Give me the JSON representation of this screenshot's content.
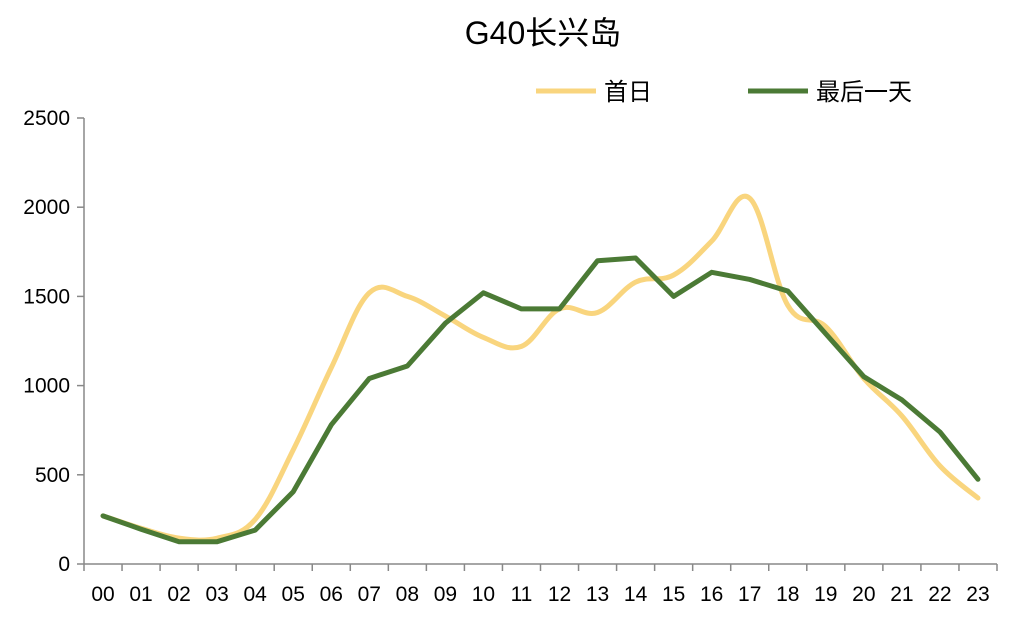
{
  "chart_data": {
    "type": "line",
    "title": "G40长兴岛",
    "xlabel": "",
    "ylabel": "",
    "categories": [
      "00",
      "01",
      "02",
      "03",
      "04",
      "05",
      "06",
      "07",
      "08",
      "09",
      "10",
      "11",
      "12",
      "13",
      "14",
      "15",
      "16",
      "17",
      "18",
      "19",
      "20",
      "21",
      "22",
      "23"
    ],
    "yticks": [
      "0",
      "500",
      "1000",
      "1500",
      "2000",
      "2500"
    ],
    "ylim": [
      0,
      2500
    ],
    "grid": false,
    "legend_position": "top-right",
    "series": [
      {
        "name": "首日",
        "color": "#F9D57E",
        "smooth": true,
        "values": [
          270,
          200,
          145,
          145,
          250,
          640,
          1100,
          1520,
          1500,
          1390,
          1270,
          1220,
          1430,
          1410,
          1580,
          1620,
          1810,
          2050,
          1450,
          1330,
          1040,
          830,
          550,
          370
        ]
      },
      {
        "name": "最后一天",
        "color": "#4B7A35",
        "smooth": false,
        "values": [
          270,
          195,
          125,
          125,
          190,
          405,
          780,
          1040,
          1110,
          1350,
          1520,
          1430,
          1430,
          1700,
          1715,
          1500,
          1635,
          1595,
          1530,
          1290,
          1050,
          920,
          740,
          475
        ]
      }
    ]
  }
}
